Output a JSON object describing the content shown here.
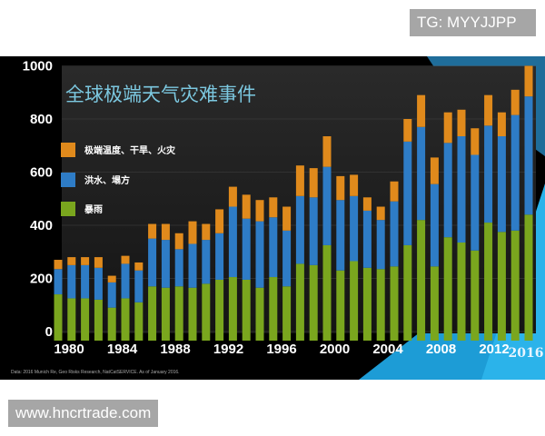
{
  "watermarks": {
    "top": "TG: MYYJJPP",
    "bottom": "www.hncrtrade.com"
  },
  "source_note": "Data: 2016 Munich Re, Geo Risks Research, NatCatSERVICE. As of January 2016.",
  "chart_data": {
    "type": "bar",
    "stacked": true,
    "title": "全球极端天气灾难事件",
    "xlabel": "",
    "ylabel": "",
    "ylim": [
      0,
      1000
    ],
    "y_ticks": [
      "0",
      "200",
      "400",
      "600",
      "800",
      "1000"
    ],
    "x_ticks": [
      "1980",
      "1984",
      "1988",
      "1992",
      "1996",
      "2000",
      "2004",
      "2008",
      "2012",
      "2016"
    ],
    "grid": true,
    "legend_placement": "top-left",
    "categories": [
      1980,
      1981,
      1982,
      1983,
      1984,
      1985,
      1986,
      1987,
      1988,
      1989,
      1990,
      1991,
      1992,
      1993,
      1994,
      1995,
      1996,
      1997,
      1998,
      1999,
      2000,
      2001,
      2002,
      2003,
      2004,
      2005,
      2006,
      2007,
      2008,
      2009,
      2010,
      2011,
      2012,
      2013,
      2014,
      2015
    ],
    "series": [
      {
        "name": "暴雨",
        "color": "#7aa61e",
        "values": [
          140,
          125,
          125,
          120,
          90,
          125,
          110,
          170,
          165,
          170,
          165,
          180,
          195,
          205,
          195,
          165,
          205,
          170,
          255,
          250,
          325,
          230,
          265,
          240,
          235,
          245,
          325,
          420,
          245,
          355,
          335,
          305,
          410,
          375,
          380,
          440
        ]
      },
      {
        "name": "洪水、塌方",
        "color": "#2e7cc6",
        "values": [
          95,
          125,
          125,
          120,
          95,
          130,
          120,
          180,
          180,
          140,
          165,
          165,
          175,
          265,
          230,
          250,
          225,
          210,
          255,
          255,
          295,
          265,
          245,
          215,
          185,
          245,
          390,
          350,
          310,
          355,
          400,
          360,
          365,
          360,
          435,
          445
        ]
      },
      {
        "name": "极端温度、干旱、火灾",
        "color": "#e08a1c",
        "values": [
          35,
          30,
          30,
          40,
          25,
          30,
          30,
          55,
          60,
          60,
          85,
          60,
          90,
          75,
          90,
          80,
          75,
          90,
          115,
          110,
          115,
          90,
          80,
          50,
          50,
          75,
          85,
          120,
          100,
          115,
          100,
          100,
          115,
          90,
          95,
          115
        ]
      }
    ]
  }
}
